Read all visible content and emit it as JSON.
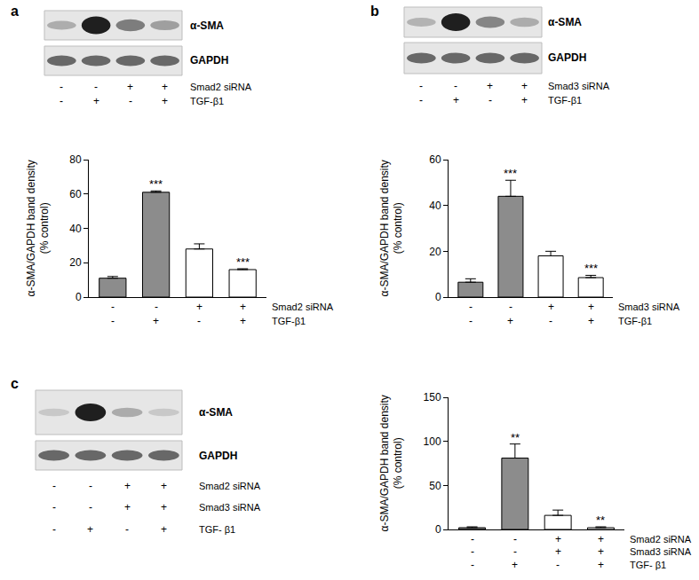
{
  "panel_labels": [
    "a",
    "b",
    "c"
  ],
  "blots": [
    {
      "bands": [
        "α-SMA",
        "GAPDH"
      ],
      "conditions": [
        {
          "name": "Smad2 siRNA",
          "signs": [
            "-",
            "-",
            "+",
            "+"
          ]
        },
        {
          "name": "TGF-β1",
          "signs": [
            "-",
            "+",
            "-",
            "+"
          ]
        }
      ]
    },
    {
      "bands": [
        "α-SMA",
        "GAPDH"
      ],
      "conditions": [
        {
          "name": "Smad3 siRNA",
          "signs": [
            "-",
            "-",
            "+",
            "+"
          ]
        },
        {
          "name": "TGF-β1",
          "signs": [
            "-",
            "+",
            "-",
            "+"
          ]
        }
      ]
    },
    {
      "bands": [
        "α-SMA",
        "GAPDH"
      ],
      "conditions": [
        {
          "name": "Smad2 siRNA",
          "signs": [
            "-",
            "-",
            "+",
            "+"
          ]
        },
        {
          "name": "Smad3 siRNA",
          "signs": [
            "-",
            "-",
            "+",
            "+"
          ]
        },
        {
          "name": "TGF- β1",
          "signs": [
            "-",
            "+",
            "-",
            "+"
          ]
        }
      ]
    }
  ],
  "chart_data": [
    {
      "type": "bar",
      "ylabel": [
        "α-SMA/GAPDH band density",
        "(% control)"
      ],
      "categories": [
        null,
        null,
        null,
        null
      ],
      "values": [
        11,
        61,
        28,
        16
      ],
      "errors": [
        1,
        0.8,
        3,
        0.5
      ],
      "colors": [
        "#8c8c8c",
        "#8c8c8c",
        "#ffffff",
        "#ffffff"
      ],
      "significance": [
        null,
        "***",
        null,
        "***"
      ],
      "conditions": [
        {
          "name": "Smad2 siRNA",
          "signs": [
            "-",
            "-",
            "+",
            "+"
          ]
        },
        {
          "name": "TGF-β1",
          "signs": [
            "-",
            "+",
            "-",
            "+"
          ]
        }
      ],
      "ylim": [
        0,
        80
      ],
      "yticks": [
        0,
        20,
        40,
        60,
        80
      ],
      "grid": false,
      "tick_labels": "y"
    },
    {
      "type": "bar",
      "ylabel": [
        "α-SMA/GAPDH band density",
        "(% control)"
      ],
      "categories": [
        null,
        null,
        null,
        null
      ],
      "values": [
        6.5,
        44,
        18,
        8.5
      ],
      "errors": [
        1.5,
        7,
        2,
        1
      ],
      "colors": [
        "#8c8c8c",
        "#8c8c8c",
        "#ffffff",
        "#ffffff"
      ],
      "significance": [
        null,
        "***",
        null,
        "***"
      ],
      "conditions": [
        {
          "name": "Smad3 siRNA",
          "signs": [
            "-",
            "-",
            "+",
            "+"
          ]
        },
        {
          "name": "TGF-β1",
          "signs": [
            "-",
            "+",
            "-",
            "+"
          ]
        }
      ],
      "ylim": [
        0,
        60
      ],
      "yticks": [
        0,
        20,
        40,
        60
      ],
      "grid": false,
      "tick_labels": "y"
    },
    {
      "type": "bar",
      "ylabel": [
        "α-SMA/GAPDH band density",
        "(% control)"
      ],
      "categories": [
        null,
        null,
        null,
        null
      ],
      "values": [
        2,
        81,
        16,
        2
      ],
      "errors": [
        1,
        16,
        6,
        1
      ],
      "colors": [
        "#8c8c8c",
        "#8c8c8c",
        "#ffffff",
        "#ffffff"
      ],
      "significance": [
        null,
        "**",
        null,
        "**"
      ],
      "conditions": [
        {
          "name": "Smad2 siRNA",
          "signs": [
            "-",
            "-",
            "+",
            "+"
          ]
        },
        {
          "name": "Smad3 siRNA",
          "signs": [
            "-",
            "-",
            "+",
            "+"
          ]
        },
        {
          "name": "TGF- β1",
          "signs": [
            "-",
            "+",
            "-",
            "+"
          ]
        }
      ],
      "ylim": [
        0,
        150
      ],
      "yticks": [
        0,
        50,
        100,
        150
      ],
      "grid": false,
      "tick_labels": "y"
    }
  ]
}
